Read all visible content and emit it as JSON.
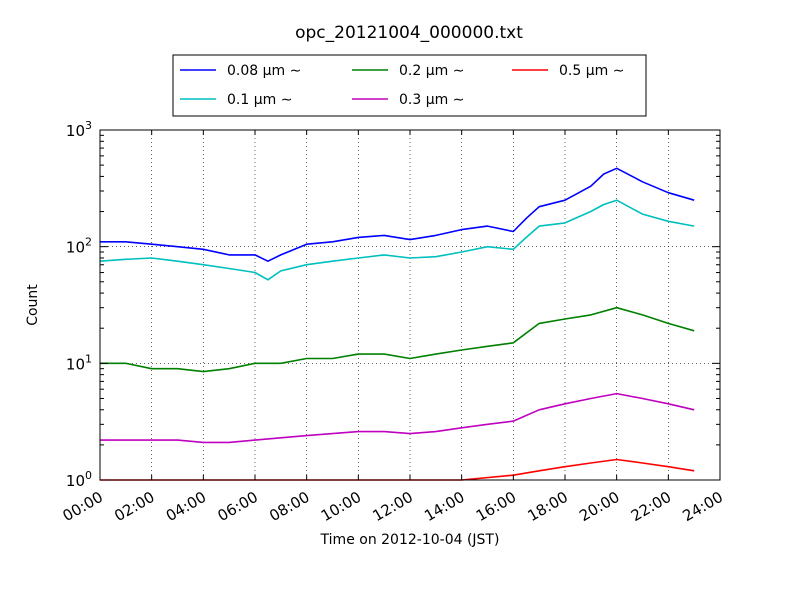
{
  "chart_data": {
    "type": "line",
    "title": "opc_20121004_000000.txt",
    "xlabel": "Time on 2012-10-04 (JST)",
    "ylabel": "Count",
    "xlim_hours": [
      0,
      24
    ],
    "ylim": [
      1,
      1000
    ],
    "y_scale": "log",
    "grid": true,
    "legend_position": "top",
    "x_ticks": [
      "00:00",
      "02:00",
      "04:00",
      "06:00",
      "08:00",
      "10:00",
      "12:00",
      "14:00",
      "16:00",
      "18:00",
      "20:00",
      "22:00",
      "24:00"
    ],
    "y_ticks": [
      {
        "value": 1,
        "base": "10",
        "exp": "0"
      },
      {
        "value": 10,
        "base": "10",
        "exp": "1"
      },
      {
        "value": 100,
        "base": "10",
        "exp": "2"
      },
      {
        "value": 1000,
        "base": "10",
        "exp": "3"
      }
    ],
    "series": [
      {
        "name": "0.08 μm ∼",
        "color": "#0000ff",
        "x": [
          0,
          1,
          2,
          3,
          4,
          5,
          6,
          6.5,
          7,
          8,
          9,
          10,
          11,
          12,
          13,
          14,
          15,
          16,
          16.5,
          17,
          18,
          19,
          19.5,
          20,
          21,
          22,
          23
        ],
        "y": [
          110,
          110,
          105,
          100,
          95,
          85,
          85,
          75,
          85,
          105,
          110,
          120,
          125,
          115,
          125,
          140,
          150,
          135,
          175,
          220,
          250,
          330,
          420,
          470,
          360,
          290,
          250
        ]
      },
      {
        "name": "0.1 μm ∼",
        "color": "#00bfbf",
        "x": [
          0,
          1,
          2,
          3,
          4,
          5,
          6,
          6.5,
          7,
          8,
          9,
          10,
          11,
          12,
          13,
          14,
          15,
          16,
          16.5,
          17,
          18,
          19,
          19.5,
          20,
          21,
          22,
          23
        ],
        "y": [
          75,
          78,
          80,
          75,
          70,
          65,
          60,
          52,
          62,
          70,
          75,
          80,
          85,
          80,
          82,
          90,
          100,
          95,
          120,
          150,
          160,
          200,
          230,
          250,
          190,
          165,
          150
        ]
      },
      {
        "name": "0.2 μm ∼",
        "color": "#008000",
        "x": [
          0,
          1,
          2,
          3,
          4,
          5,
          6,
          7,
          8,
          9,
          10,
          11,
          12,
          13,
          14,
          15,
          16,
          17,
          18,
          19,
          20,
          21,
          22,
          23
        ],
        "y": [
          10,
          10,
          9,
          9,
          8.5,
          9,
          10,
          10,
          11,
          11,
          12,
          12,
          11,
          12,
          13,
          14,
          15,
          22,
          24,
          26,
          30,
          26,
          22,
          19
        ]
      },
      {
        "name": "0.3 μm ∼",
        "color": "#bf00bf",
        "x": [
          0,
          1,
          2,
          3,
          4,
          5,
          6,
          7,
          8,
          9,
          10,
          11,
          12,
          13,
          14,
          15,
          16,
          17,
          18,
          19,
          20,
          21,
          22,
          23
        ],
        "y": [
          2.2,
          2.2,
          2.2,
          2.2,
          2.1,
          2.1,
          2.2,
          2.3,
          2.4,
          2.5,
          2.6,
          2.6,
          2.5,
          2.6,
          2.8,
          3.0,
          3.2,
          4.0,
          4.5,
          5.0,
          5.5,
          5.0,
          4.5,
          4.0
        ]
      },
      {
        "name": "0.5 μm ∼",
        "color": "#ff0000",
        "x": [
          0,
          2,
          4,
          6,
          8,
          10,
          12,
          14,
          16,
          17,
          18,
          19,
          20,
          21,
          22,
          23
        ],
        "y": [
          1.0,
          1.0,
          1.0,
          1.0,
          1.0,
          1.0,
          1.0,
          1.0,
          1.1,
          1.2,
          1.3,
          1.4,
          1.5,
          1.4,
          1.3,
          1.2
        ]
      }
    ]
  }
}
